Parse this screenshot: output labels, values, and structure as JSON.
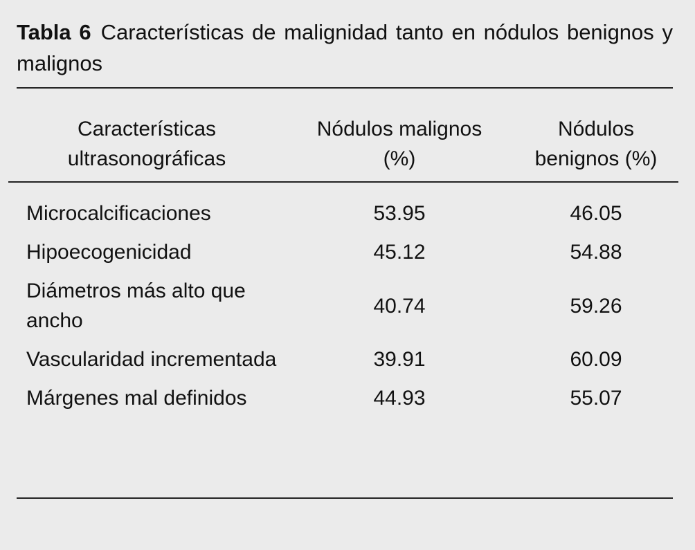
{
  "caption": {
    "label": "Tabla 6",
    "text": "Características de malignidad tanto en nódulos benignos y malignos"
  },
  "table": {
    "headers": [
      "Características ultrasonográficas",
      "Nódulos malignos (%)",
      "Nódulos benignos (%)"
    ],
    "rows": [
      [
        "Microcalcificaciones",
        53.95,
        46.05
      ],
      [
        "Hipoecogenicidad",
        45.12,
        54.88
      ],
      [
        "Diámetros más alto que ancho",
        40.74,
        59.26
      ],
      [
        "Vascularidad incrementada",
        39.91,
        60.09
      ],
      [
        "Márgenes mal definidos",
        44.93,
        55.07
      ]
    ]
  }
}
